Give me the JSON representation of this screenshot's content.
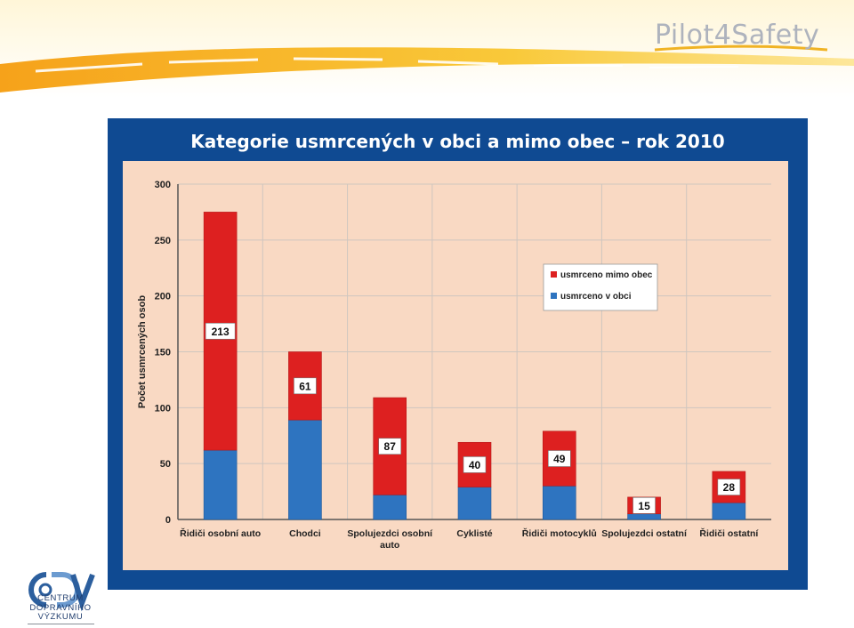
{
  "brand": {
    "name": "Pilot4Safety"
  },
  "logo": {
    "lines": [
      "CENTRUM",
      "DOPRAVNÍHO",
      "VÝZKUMU"
    ]
  },
  "colors": {
    "panel": "#0f4a92",
    "plot_bg": "#f9d9c3",
    "mimo_obec": "#dd2020",
    "v_obci": "#2e74c0",
    "banner": "#f4b51c"
  },
  "chart_data": {
    "type": "bar",
    "stacked": true,
    "title": "Kategorie usmrcených v obci a mimo obec – rok 2010",
    "ylabel": "Počet usmrcených osob",
    "xlabel": "",
    "ylim": [
      0,
      300
    ],
    "yticks": [
      0,
      50,
      100,
      150,
      200,
      250,
      300
    ],
    "grid": true,
    "legend_position": "right",
    "categories": [
      "Řidiči osobní auto",
      "Chodci",
      "Spolujezdci osobní auto",
      "Cyklisté",
      "Řidiči motocyklů",
      "Spolujezdci ostatní",
      "Řidiči ostatní"
    ],
    "series": [
      {
        "name": "usmrceno v obci",
        "color": "#2e74c0",
        "values": [
          62,
          89,
          22,
          29,
          30,
          5,
          15
        ]
      },
      {
        "name": "usmrceno mimo obec",
        "color": "#dd2020",
        "values": [
          213,
          61,
          87,
          40,
          49,
          15,
          28
        ]
      }
    ],
    "data_labels": [
      "213",
      "61",
      "87",
      "40",
      "49",
      "15",
      "28"
    ]
  }
}
